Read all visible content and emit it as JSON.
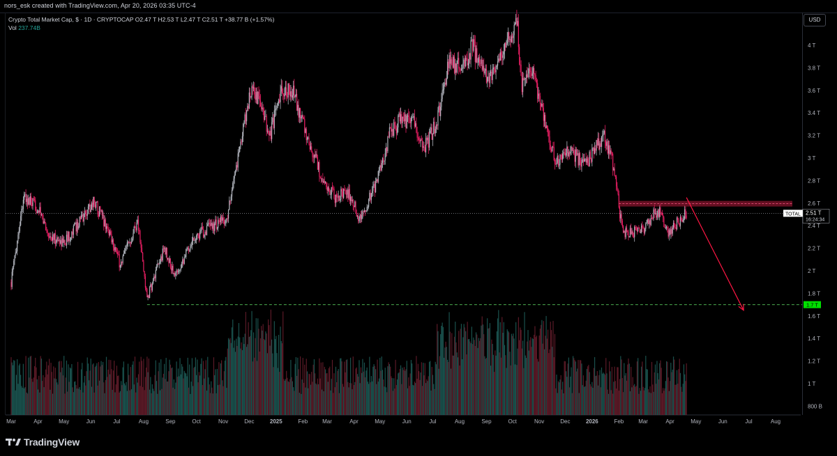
{
  "header": {
    "credit": "nors_esk created with TradingView.com, Apr 20, 2026 03:35 UTC-4"
  },
  "legend": {
    "title": "Crypto Total Market Cap, $ · 1D · CRYPTOCAP",
    "open": "O2.47 T",
    "high": "H2.53 T",
    "low": "L2.47 T",
    "close": "C2.51 T",
    "change": "+38.77 B (+1.57%)",
    "vol_label": "Vol",
    "vol_value": "237.74B"
  },
  "currency_button": "USD",
  "footer": {
    "brand": "TradingView"
  },
  "colors": {
    "up": "#b2b5be",
    "down": "#e91e63",
    "vol_up": "#1f5f5a",
    "vol_down": "#6b1f2e",
    "support_line": "#4caf50",
    "resistance_zone": "#b71c3c",
    "projection_arrow": "#ff1744",
    "background": "#000000"
  },
  "chart_data": {
    "type": "candlestick",
    "symbol": "TOTAL",
    "timeframe": "1D",
    "yaxis_ticks": [
      "800 B",
      "1 T",
      "1.2 T",
      "1.4 T",
      "1.6 T",
      "1.8 T",
      "2 T",
      "2.2 T",
      "2.4 T",
      "2.6 T",
      "2.8 T",
      "3 T",
      "3.2 T",
      "3.4 T",
      "3.6 T",
      "3.8 T",
      "4 T"
    ],
    "xaxis_ticks": [
      "Mar",
      "Apr",
      "May",
      "Jun",
      "Jul",
      "Aug",
      "Sep",
      "Oct",
      "Nov",
      "Dec",
      "2025",
      "Feb",
      "Mar",
      "Apr",
      "May",
      "Jun",
      "Jul",
      "Aug",
      "Sep",
      "Oct",
      "Nov",
      "Dec",
      "2026",
      "Feb",
      "Mar",
      "Apr",
      "May",
      "Jun",
      "Jul",
      "Aug"
    ],
    "ylim_trillions": [
      1.2,
      4.2
    ],
    "last_price": {
      "symbol_label": "TOTAL",
      "value": "2.51 T",
      "countdown": "16:24:34",
      "value_t": 2.51
    },
    "support_level": {
      "label": "1.7 T",
      "value_t": 1.7
    },
    "resistance_zone_t": [
      2.57,
      2.62
    ],
    "projection": {
      "from_t": 2.65,
      "from_date": "2026-04-20",
      "to_t": 1.65,
      "to_date": "2026-06-25"
    },
    "price_path_t": [
      [
        "2024-03-01",
        1.9
      ],
      [
        "2024-03-15",
        2.65
      ],
      [
        "2024-04-01",
        2.55
      ],
      [
        "2024-04-15",
        2.3
      ],
      [
        "2024-05-01",
        2.25
      ],
      [
        "2024-05-20",
        2.45
      ],
      [
        "2024-06-05",
        2.62
      ],
      [
        "2024-06-25",
        2.3
      ],
      [
        "2024-07-05",
        2.05
      ],
      [
        "2024-07-25",
        2.45
      ],
      [
        "2024-08-05",
        1.75
      ],
      [
        "2024-08-25",
        2.2
      ],
      [
        "2024-09-06",
        1.95
      ],
      [
        "2024-09-28",
        2.3
      ],
      [
        "2024-10-20",
        2.4
      ],
      [
        "2024-11-05",
        2.45
      ],
      [
        "2024-11-25",
        3.3
      ],
      [
        "2024-12-05",
        3.65
      ],
      [
        "2024-12-25",
        3.2
      ],
      [
        "2025-01-05",
        3.55
      ],
      [
        "2025-01-20",
        3.6
      ],
      [
        "2025-02-05",
        3.2
      ],
      [
        "2025-02-25",
        2.8
      ],
      [
        "2025-03-10",
        2.65
      ],
      [
        "2025-03-25",
        2.7
      ],
      [
        "2025-04-08",
        2.45
      ],
      [
        "2025-04-25",
        2.75
      ],
      [
        "2025-05-12",
        3.2
      ],
      [
        "2025-05-25",
        3.35
      ],
      [
        "2025-06-10",
        3.3
      ],
      [
        "2025-06-22",
        3.1
      ],
      [
        "2025-07-05",
        3.3
      ],
      [
        "2025-07-20",
        3.85
      ],
      [
        "2025-08-05",
        3.8
      ],
      [
        "2025-08-15",
        4.0
      ],
      [
        "2025-09-01",
        3.7
      ],
      [
        "2025-09-20",
        3.9
      ],
      [
        "2025-10-06",
        4.25
      ],
      [
        "2025-10-11",
        3.65
      ],
      [
        "2025-10-25",
        3.75
      ],
      [
        "2025-11-05",
        3.4
      ],
      [
        "2025-11-20",
        2.95
      ],
      [
        "2025-12-05",
        3.05
      ],
      [
        "2025-12-25",
        2.95
      ],
      [
        "2026-01-14",
        3.2
      ],
      [
        "2026-01-25",
        2.95
      ],
      [
        "2026-02-05",
        2.35
      ],
      [
        "2026-02-20",
        2.35
      ],
      [
        "2026-03-05",
        2.4
      ],
      [
        "2026-03-18",
        2.55
      ],
      [
        "2026-03-30",
        2.32
      ],
      [
        "2026-04-12",
        2.45
      ],
      [
        "2026-04-20",
        2.51
      ]
    ]
  }
}
